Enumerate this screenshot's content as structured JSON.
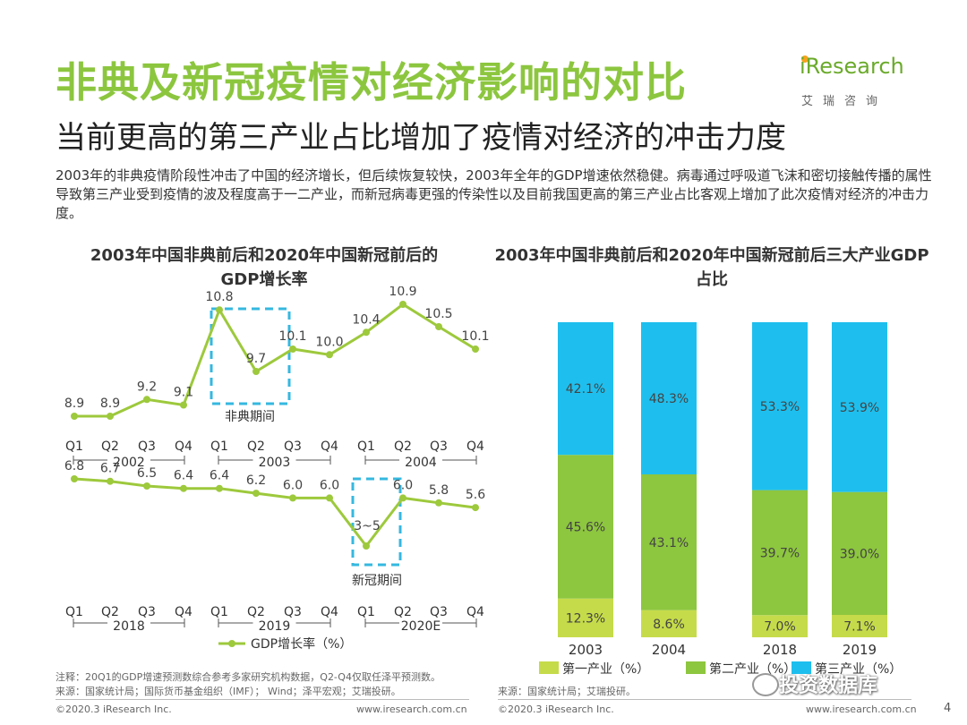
{
  "header": {
    "title": "非典及新冠疫情对经济影响的对比",
    "subtitle": "当前更高的第三产业占比增加了疫情对经济的冲击力度",
    "intro": "2003年的非典疫情阶段性冲击了中国的经济增长，但后续恢复较快，2003年全年的GDP增速依然稳健。病毒通过呼吸道飞沫和密切接触传播的属性导致第三产业受到疫情的波及程度高于一二产业，而新冠病毒更强的传染性以及目前我国更高的第三产业占比客观上增加了此次疫情对经济的冲击力度。"
  },
  "logo": {
    "brand": "iResearch",
    "sub": "艾瑞咨询"
  },
  "colors": {
    "green": "#9dc93c",
    "cyan": "#1ebfee",
    "lime": "#c6db4a",
    "deep_green": "#8dc63f",
    "dash": "#35b8e0"
  },
  "chart_data": [
    {
      "type": "line",
      "title": "2003年中国非典前后和2020年中国新冠前后的GDP增长率",
      "legend": [
        "GDP增长率（%）"
      ],
      "panels": [
        {
          "quarters": [
            "Q1",
            "Q2",
            "Q3",
            "Q4",
            "Q1",
            "Q2",
            "Q3",
            "Q4",
            "Q1",
            "Q2",
            "Q3",
            "Q4"
          ],
          "years": [
            "2002",
            "2003",
            "2004"
          ],
          "values": [
            8.9,
            8.9,
            9.2,
            9.1,
            10.8,
            9.7,
            10.1,
            10.0,
            10.4,
            10.9,
            10.5,
            10.1
          ],
          "labels": [
            "8.9",
            "8.9",
            "9.2",
            "9.1",
            "10.8",
            "9.7",
            "10.1",
            "10.0",
            "10.4",
            "10.9",
            "10.5",
            "10.1"
          ],
          "highlight_label": "非典期间"
        },
        {
          "quarters": [
            "Q1",
            "Q2",
            "Q3",
            "Q4",
            "Q1",
            "Q2",
            "Q3",
            "Q4",
            "Q1",
            "Q2",
            "Q3",
            "Q4"
          ],
          "years": [
            "2018",
            "2019",
            "2020E"
          ],
          "values": [
            6.8,
            6.7,
            6.5,
            6.4,
            6.4,
            6.2,
            6.0,
            6.0,
            4.0,
            6.0,
            5.8,
            5.6
          ],
          "labels": [
            "6.8",
            "6.7",
            "6.5",
            "6.4",
            "6.4",
            "6.2",
            "6.0",
            "6.0",
            "3~5",
            "6.0",
            "5.8",
            "5.6"
          ],
          "highlight_label": "新冠期间"
        }
      ]
    },
    {
      "type": "bar",
      "stacked": true,
      "title": "2003年中国非典前后和2020年中国新冠前后三大产业GDP占比",
      "categories": [
        "2003",
        "2004",
        "2018",
        "2019"
      ],
      "series": [
        {
          "name": "第一产业（%）",
          "values": [
            12.3,
            8.6,
            7.0,
            7.1
          ],
          "labels": [
            "12.3%",
            "8.6%",
            "7.0%",
            "7.1%"
          ],
          "color": "#c6db4a"
        },
        {
          "name": "第二产业（%）",
          "values": [
            45.6,
            43.1,
            39.7,
            39.0
          ],
          "labels": [
            "45.6%",
            "43.1%",
            "39.7%",
            "39.0%"
          ],
          "color": "#8dc63f"
        },
        {
          "name": "第三产业（%）",
          "values": [
            42.1,
            48.3,
            53.3,
            53.9
          ],
          "labels": [
            "42.1%",
            "48.3%",
            "53.3%",
            "53.9%"
          ],
          "color": "#1ebfee"
        }
      ],
      "ylim": [
        0,
        100
      ]
    }
  ],
  "footer": {
    "left_note": "注释：20Q1的GDP增速预测数综合参考多家研究机构数据，Q2-Q4仅取任泽平预测数。",
    "left_source": "来源：国家统计局；国际货币基金组织（IMF）； Wind；泽平宏观；艾瑞投研。",
    "right_source": "来源：国家统计局；艾瑞投研。",
    "copyright_left": "©2020.3 iResearch Inc.",
    "url_left": "www.iresearch.com.cn",
    "copyright_right": "©2020.3 iResearch Inc.",
    "url_right": "www.iresearch.com.cn",
    "watermark": "投资数据库",
    "page_number": "4"
  }
}
